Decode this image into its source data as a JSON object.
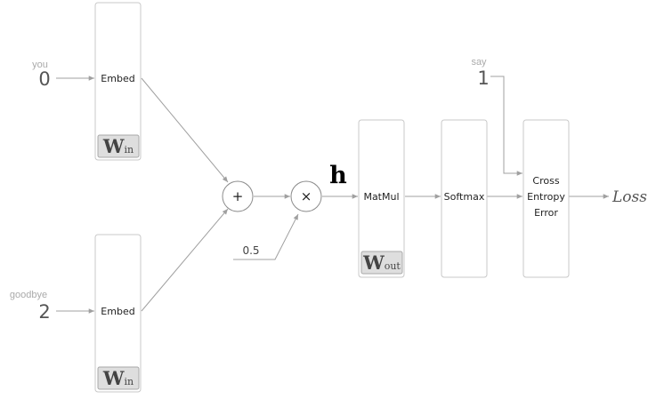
{
  "inputs": {
    "top": {
      "word": "you",
      "index": "0"
    },
    "bottom": {
      "word": "goodbye",
      "index": "2"
    },
    "target": {
      "word": "say",
      "index": "1"
    }
  },
  "embed_top": {
    "label": "Embed",
    "weight_main": "W",
    "weight_sub": "in"
  },
  "embed_bottom": {
    "label": "Embed",
    "weight_main": "W",
    "weight_sub": "in"
  },
  "add_node": {
    "symbol": "+"
  },
  "mul_node": {
    "symbol": "×"
  },
  "scale_constant": "0.5",
  "hidden_label": "h",
  "matmul": {
    "label": "MatMul",
    "weight_main": "W",
    "weight_sub": "out"
  },
  "softmax": {
    "label": "Softmax"
  },
  "cross_entropy": {
    "line1": "Cross",
    "line2": "Entropy",
    "line3": "Error"
  },
  "loss_label": "Loss"
}
